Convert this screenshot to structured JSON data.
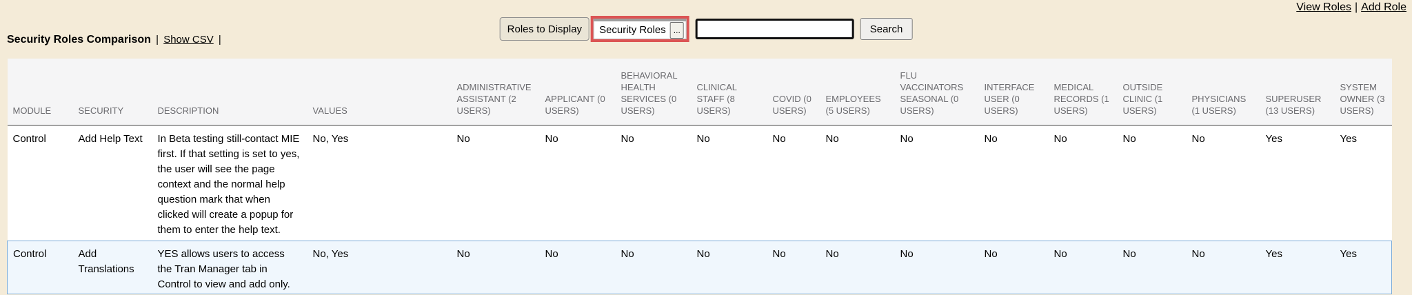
{
  "colors": {
    "page_background": "#f4ebd8",
    "highlight_border": "#dc5454",
    "header_text": "#6a6a6e",
    "header_background": "#f5f5f6",
    "highlight_row_background": "#f0f7fd",
    "highlight_row_border": "#7aabd8"
  },
  "top_nav": {
    "view_roles": "View Roles",
    "separator": "|",
    "add_role": "Add Role"
  },
  "toolbar": {
    "roles_to_display_label": "Roles to Display",
    "roles_picker_value": "Security Roles",
    "roles_picker_ellipsis": "...",
    "search_value": "",
    "search_placeholder": "",
    "search_button_label": "Search"
  },
  "heading": {
    "title": "Security Roles Comparison",
    "separator": "|",
    "show_csv_label": "Show CSV",
    "trailing_separator": "|"
  },
  "table": {
    "columns": [
      "MODULE",
      "SECURITY",
      "DESCRIPTION",
      "VALUES",
      "ADMINISTRATIVE ASSISTANT (2 USERS)",
      "APPLICANT (0 USERS)",
      "BEHAVIORAL HEALTH SERVICES (0 USERS)",
      "CLINICAL STAFF (8 USERS)",
      "COVID (0 USERS)",
      "EMPLOYEES (5 USERS)",
      "FLU VACCINATORS SEASONAL (0 USERS)",
      "INTERFACE USER (0 USERS)",
      "MEDICAL RECORDS (1 USERS)",
      "OUTSIDE CLINIC (1 USERS)",
      "PHYSICIANS (1 USERS)",
      "SUPERUSER (13 USERS)",
      "SYSTEM OWNER (3 USERS)"
    ],
    "rows": [
      {
        "highlighted": false,
        "cells": [
          "Control",
          "Add Help Text",
          "In Beta testing still-contact MIE first. If that setting is set to yes, the user will see the page context and the normal help question mark that when clicked will create a popup for them to enter the help text.",
          "No, Yes",
          "No",
          "No",
          "No",
          "No",
          "No",
          "No",
          "No",
          "No",
          "No",
          "No",
          "No",
          "Yes",
          "Yes"
        ]
      },
      {
        "highlighted": true,
        "cells": [
          "Control",
          "Add Translations",
          "YES allows users to access the Tran Manager tab in Control to view and add only.",
          "No, Yes",
          "No",
          "No",
          "No",
          "No",
          "No",
          "No",
          "No",
          "No",
          "No",
          "No",
          "No",
          "Yes",
          "Yes"
        ]
      }
    ]
  }
}
